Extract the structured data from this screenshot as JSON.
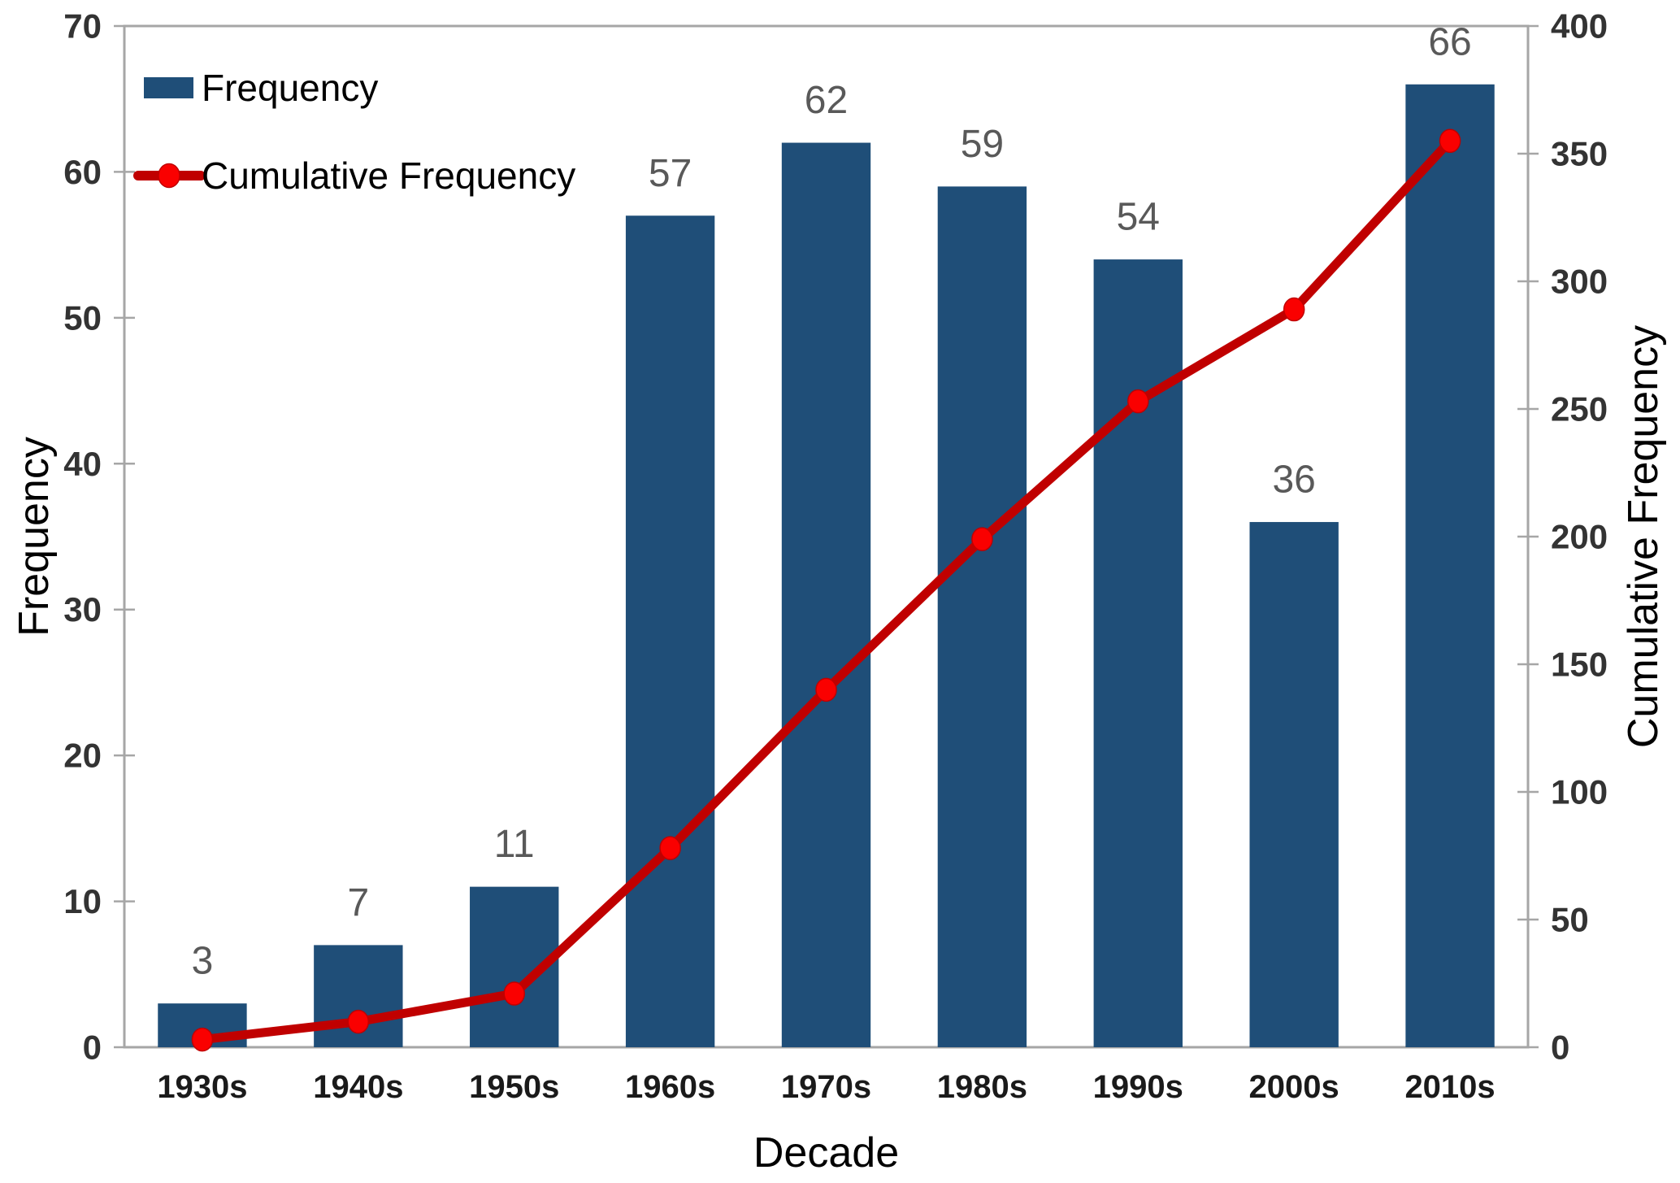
{
  "chart_data": {
    "type": "bar",
    "subtype": "pareto-combo (bars + cumulative line, dual y-axes)",
    "categories": [
      "1930s",
      "1940s",
      "1950s",
      "1960s",
      "1970s",
      "1980s",
      "1990s",
      "2000s",
      "2010s"
    ],
    "series": [
      {
        "name": "Frequency",
        "kind": "bar",
        "axis": "left",
        "values": [
          3,
          7,
          11,
          57,
          62,
          59,
          54,
          36,
          66
        ],
        "data_labels": [
          "3",
          "7",
          "11",
          "57",
          "62",
          "59",
          "54",
          "36",
          "66"
        ]
      },
      {
        "name": "Cumulative Frequency",
        "kind": "line",
        "axis": "right",
        "values": [
          3,
          10,
          21,
          78,
          140,
          199,
          253,
          289,
          355
        ]
      }
    ],
    "xlabel": "Decade",
    "ylabel_left": "Frequency",
    "ylabel_right": "Cumulative Frequency",
    "ylim_left": [
      0,
      70
    ],
    "yticks_left": [
      0,
      10,
      20,
      30,
      40,
      50,
      60,
      70
    ],
    "ylim_right": [
      0,
      400
    ],
    "yticks_right": [
      0,
      50,
      100,
      150,
      200,
      250,
      300,
      350,
      400
    ],
    "grid": false,
    "legend_position": "inside top-left",
    "legend": [
      {
        "label": "Frequency",
        "swatch": "bar-rect"
      },
      {
        "label": "Cumulative Frequency",
        "swatch": "line-with-marker"
      }
    ]
  },
  "colors": {
    "bar_fill": "#1F4E78",
    "line_stroke": "#C00000",
    "marker_fill": "#FA0000",
    "data_label": "#595959",
    "tick_label": "#333333",
    "x_tick_label": "#1A1A1A",
    "axis_line": "#A6A6A6",
    "title_text": "#000000"
  }
}
